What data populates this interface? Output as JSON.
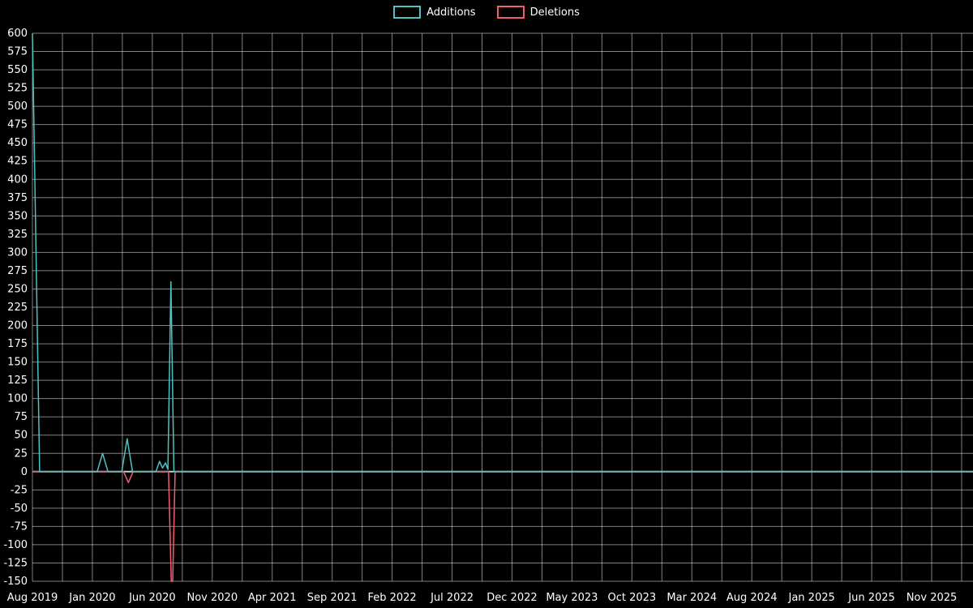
{
  "legend": {
    "items": [
      {
        "label": "Additions",
        "color": "#4cc3c5"
      },
      {
        "label": "Deletions",
        "color": "#f25d6e"
      }
    ]
  },
  "chart_data": {
    "type": "line",
    "title": "",
    "background": "#000000",
    "text_color": "#ffffff",
    "legend_position": "top-center",
    "grid": {
      "show": true,
      "color": "rgba(255,255,255,0.5)",
      "zero_line_color": "#c6ced2"
    },
    "x_axis": {
      "unit": "month",
      "tick_labels": [
        "Aug 2019",
        "Jan 2020",
        "Jun 2020",
        "Nov 2020",
        "Apr 2021",
        "Sep 2021",
        "Feb 2022",
        "Jul 2022",
        "Dec 2022",
        "May 2023",
        "Oct 2023",
        "Mar 2024",
        "Aug 2024",
        "Jan 2025",
        "Jun 2025",
        "Nov 2025"
      ],
      "tick_month_offsets": [
        0,
        5,
        10,
        15,
        20,
        25,
        30,
        35,
        40,
        45,
        50,
        55,
        60,
        65,
        70,
        75
      ],
      "months_shown": [
        0,
        78.5
      ],
      "gridlines_every_months": 2.5
    },
    "y_axis": {
      "tick_values": [
        600,
        575,
        550,
        525,
        500,
        475,
        450,
        425,
        400,
        375,
        350,
        325,
        300,
        275,
        250,
        225,
        200,
        175,
        150,
        125,
        100,
        75,
        50,
        25,
        0,
        -25,
        -50,
        -75,
        -100,
        -125,
        -150
      ],
      "range": [
        -150,
        600
      ]
    },
    "series": [
      {
        "name": "Additions",
        "color": "#4cc3c5",
        "points_months_value": [
          [
            0,
            600
          ],
          [
            0.6,
            0
          ],
          [
            5.4,
            0
          ],
          [
            5.85,
            25
          ],
          [
            6.3,
            0
          ],
          [
            7.45,
            0
          ],
          [
            7.9,
            45
          ],
          [
            8.35,
            0
          ],
          [
            10.3,
            0
          ],
          [
            10.6,
            14
          ],
          [
            10.85,
            5
          ],
          [
            11.1,
            12
          ],
          [
            11.3,
            3
          ],
          [
            11.55,
            260
          ],
          [
            11.8,
            0
          ],
          [
            78.5,
            0
          ]
        ]
      },
      {
        "name": "Deletions",
        "color": "#f25d6e",
        "points_months_value": [
          [
            0,
            0
          ],
          [
            7.6,
            0
          ],
          [
            8.0,
            -15
          ],
          [
            8.4,
            0
          ],
          [
            11.35,
            0
          ],
          [
            11.58,
            -150
          ],
          [
            11.7,
            -150
          ],
          [
            11.9,
            0
          ],
          [
            78.5,
            0
          ]
        ]
      }
    ]
  }
}
